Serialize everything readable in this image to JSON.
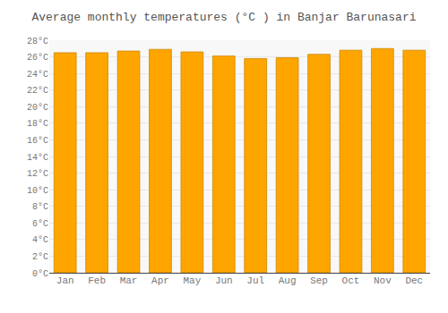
{
  "chart_data": {
    "type": "bar",
    "title": "Average monthly temperatures (°C ) in Banjar Barunasari",
    "categories": [
      "Jan",
      "Feb",
      "Mar",
      "Apr",
      "May",
      "Jun",
      "Jul",
      "Aug",
      "Sep",
      "Oct",
      "Nov",
      "Dec"
    ],
    "values": [
      26.5,
      26.5,
      26.7,
      26.9,
      26.6,
      26.1,
      25.8,
      25.9,
      26.3,
      26.8,
      27.0,
      26.8
    ],
    "color": "#FFA500",
    "ylim": [
      0,
      28
    ],
    "yticks": [
      {
        "value": 0,
        "label": "0°C"
      },
      {
        "value": 2,
        "label": "2°C"
      },
      {
        "value": 4,
        "label": "4°C"
      },
      {
        "value": 6,
        "label": "6°C"
      },
      {
        "value": 8,
        "label": "8°C"
      },
      {
        "value": 10,
        "label": "10°C"
      },
      {
        "value": 12,
        "label": "12°C"
      },
      {
        "value": 14,
        "label": "14°C"
      },
      {
        "value": 16,
        "label": "16°C"
      },
      {
        "value": 18,
        "label": "18°C"
      },
      {
        "value": 20,
        "label": "20°C"
      },
      {
        "value": 22,
        "label": "22°C"
      },
      {
        "value": 24,
        "label": "24°C"
      },
      {
        "value": 26,
        "label": "26°C"
      },
      {
        "value": 28,
        "label": "28°C"
      }
    ],
    "grid": true
  }
}
